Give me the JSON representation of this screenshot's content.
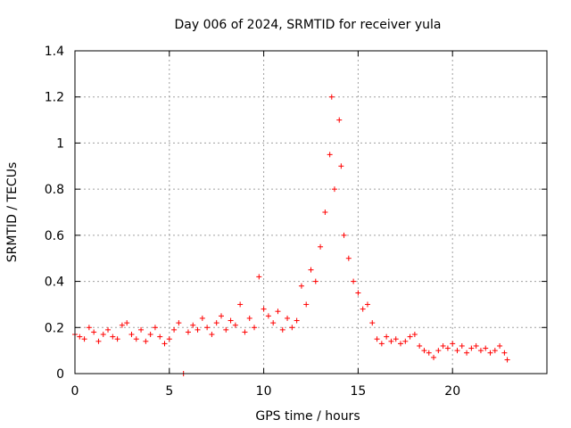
{
  "chart_data": {
    "type": "scatter",
    "title": "Day 006 of 2024, SRMTID for receiver yula",
    "xlabel": "GPS time / hours",
    "ylabel": "SRMTID / TECUs",
    "xlim": [
      0,
      25
    ],
    "ylim": [
      0,
      1.4
    ],
    "xticks": [
      0,
      5,
      10,
      15,
      20
    ],
    "xtick_labels": [
      "0",
      "5",
      "10",
      "15",
      "20"
    ],
    "yticks": [
      0,
      0.2,
      0.4,
      0.6,
      0.8,
      1.0,
      1.2,
      1.4
    ],
    "ytick_labels": [
      "0",
      "0.2",
      "0.4",
      "0.6",
      "0.8",
      "1",
      "1.2",
      "1.4"
    ],
    "grid": true,
    "marker": "+",
    "marker_color": "#ff0000",
    "series": [
      {
        "name": "SRMTID",
        "x": [
          0.0,
          0.25,
          0.5,
          0.75,
          1.0,
          1.25,
          1.5,
          1.75,
          2.0,
          2.25,
          2.5,
          2.75,
          3.0,
          3.25,
          3.5,
          3.75,
          4.0,
          4.25,
          4.5,
          4.75,
          5.0,
          5.25,
          5.5,
          5.75,
          6.0,
          6.25,
          6.5,
          6.75,
          7.0,
          7.25,
          7.5,
          7.75,
          8.0,
          8.25,
          8.5,
          8.75,
          9.0,
          9.25,
          9.5,
          9.75,
          10.0,
          10.25,
          10.5,
          10.75,
          11.0,
          11.25,
          11.5,
          11.75,
          12.0,
          12.25,
          12.5,
          12.75,
          13.0,
          13.25,
          13.5,
          13.6,
          13.75,
          14.0,
          14.1,
          14.25,
          14.5,
          14.75,
          15.0,
          15.25,
          15.5,
          15.75,
          16.0,
          16.25,
          16.5,
          16.75,
          17.0,
          17.25,
          17.5,
          17.75,
          18.0,
          18.25,
          18.5,
          18.75,
          19.0,
          19.25,
          19.5,
          19.75,
          20.0,
          20.25,
          20.5,
          20.75,
          21.0,
          21.25,
          21.5,
          21.75,
          22.0,
          22.25,
          22.5,
          22.75,
          22.9
        ],
        "y": [
          0.17,
          0.16,
          0.15,
          0.2,
          0.18,
          0.14,
          0.17,
          0.19,
          0.16,
          0.15,
          0.21,
          0.22,
          0.17,
          0.15,
          0.19,
          0.14,
          0.17,
          0.2,
          0.16,
          0.13,
          0.15,
          0.19,
          0.22,
          0.0,
          0.18,
          0.21,
          0.19,
          0.24,
          0.2,
          0.17,
          0.22,
          0.25,
          0.19,
          0.23,
          0.21,
          0.3,
          0.18,
          0.24,
          0.2,
          0.42,
          0.28,
          0.25,
          0.22,
          0.27,
          0.19,
          0.24,
          0.2,
          0.23,
          0.38,
          0.3,
          0.45,
          0.4,
          0.55,
          0.7,
          0.95,
          1.2,
          0.8,
          1.1,
          0.9,
          0.6,
          0.5,
          0.4,
          0.35,
          0.28,
          0.3,
          0.22,
          0.15,
          0.13,
          0.16,
          0.14,
          0.15,
          0.13,
          0.14,
          0.16,
          0.17,
          0.12,
          0.1,
          0.09,
          0.07,
          0.1,
          0.12,
          0.11,
          0.13,
          0.1,
          0.12,
          0.09,
          0.11,
          0.12,
          0.1,
          0.11,
          0.09,
          0.1,
          0.12,
          0.09,
          0.06
        ]
      }
    ]
  }
}
